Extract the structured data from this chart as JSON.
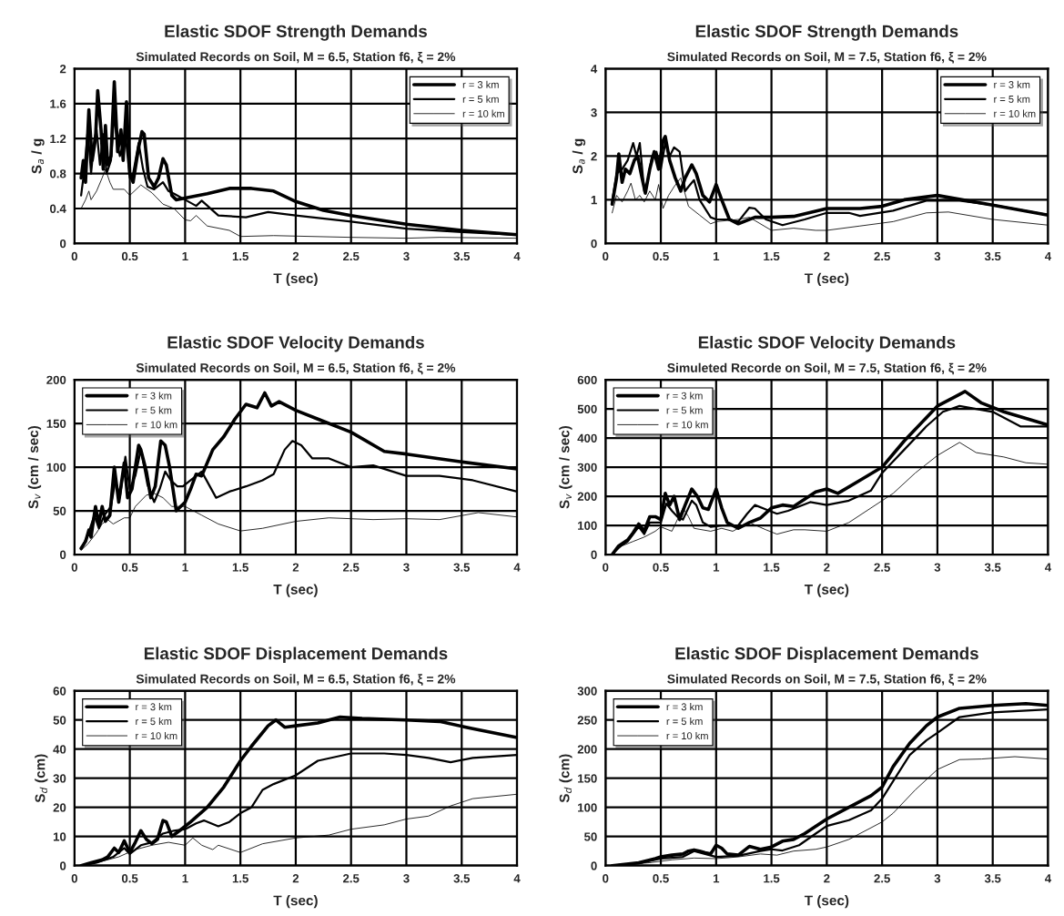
{
  "chart_data": [
    {
      "type": "line",
      "title": "Elastic SDOF Strength Demands",
      "subtitle": "Simulated Records on Soil, M = 6.5, Station f6, ξ = 2%",
      "xlabel": "T (sec)",
      "ylabel": "S$_{a}$ / g",
      "xlim": [
        0,
        4
      ],
      "xticks": [
        0,
        0.5,
        1,
        1.5,
        2,
        2.5,
        3,
        3.5,
        4
      ],
      "ylim": [
        0,
        2
      ],
      "yticks": [
        0,
        0.4,
        0.8,
        1.2,
        1.6,
        2
      ],
      "grid": true,
      "legend": "top right",
      "marker": "none",
      "line_style": "solid",
      "series": [
        {
          "name": "r = 3 km",
          "color": "#000000",
          "x": [
            0.06,
            0.08,
            0.1,
            0.13,
            0.16,
            0.19,
            0.21,
            0.24,
            0.26,
            0.28,
            0.3,
            0.33,
            0.36,
            0.39,
            0.42,
            0.44,
            0.47,
            0.5,
            0.53,
            0.58,
            0.61,
            0.63,
            0.67,
            0.72,
            0.76,
            0.8,
            0.83,
            0.88,
            0.92,
            1.0,
            1.2,
            1.4,
            1.6,
            1.8,
            2.0,
            2.25,
            2.5,
            3.0,
            3.5,
            4.0
          ],
          "values": [
            0.75,
            0.95,
            0.7,
            1.53,
            0.95,
            1.2,
            1.75,
            1.3,
            0.85,
            1.35,
            0.9,
            1.0,
            1.85,
            1.05,
            1.3,
            0.95,
            1.62,
            0.8,
            0.7,
            1.1,
            1.28,
            1.25,
            0.75,
            0.65,
            0.75,
            0.97,
            0.9,
            0.55,
            0.5,
            0.52,
            0.57,
            0.63,
            0.63,
            0.6,
            0.48,
            0.38,
            0.32,
            0.22,
            0.15,
            0.1
          ]
        },
        {
          "name": "r = 5 km",
          "color": "#000000",
          "x": [
            0.06,
            0.09,
            0.12,
            0.15,
            0.18,
            0.2,
            0.23,
            0.26,
            0.29,
            0.33,
            0.36,
            0.38,
            0.41,
            0.46,
            0.5,
            0.53,
            0.58,
            0.62,
            0.66,
            0.72,
            0.8,
            0.85,
            0.9,
            1.0,
            1.1,
            1.15,
            1.3,
            1.55,
            1.75,
            2.0,
            2.5,
            3.0,
            3.5,
            4.0
          ],
          "values": [
            0.55,
            0.85,
            1.3,
            0.8,
            1.2,
            1.3,
            0.9,
            1.25,
            0.8,
            0.95,
            1.5,
            1.2,
            1.0,
            1.25,
            0.75,
            0.8,
            1.15,
            0.85,
            0.65,
            0.62,
            0.7,
            0.6,
            0.57,
            0.5,
            0.43,
            0.49,
            0.32,
            0.3,
            0.36,
            0.32,
            0.25,
            0.17,
            0.13,
            0.1
          ]
        },
        {
          "name": "r = 10 km",
          "color": "#000000",
          "x": [
            0.06,
            0.1,
            0.13,
            0.15,
            0.2,
            0.25,
            0.28,
            0.32,
            0.35,
            0.45,
            0.5,
            0.6,
            0.7,
            0.8,
            0.9,
            1.0,
            1.05,
            1.1,
            1.2,
            1.4,
            1.5,
            1.8,
            2.5,
            3.0,
            3.3,
            4.0
          ],
          "values": [
            0.4,
            0.5,
            0.6,
            0.5,
            0.6,
            0.75,
            0.85,
            0.7,
            0.62,
            0.62,
            0.55,
            0.67,
            0.58,
            0.45,
            0.4,
            0.27,
            0.26,
            0.32,
            0.2,
            0.15,
            0.08,
            0.09,
            0.07,
            0.06,
            0.07,
            0.06
          ]
        }
      ]
    },
    {
      "type": "line",
      "title": "Elastic SDOF Strength Demands",
      "subtitle": "Simulated Records on Soil, M = 7.5, Station f6, ξ = 2%",
      "xlabel": "T (sec)",
      "ylabel": "S$_{a}$ / g",
      "xlim": [
        0,
        4
      ],
      "xticks": [
        0,
        0.5,
        1,
        1.5,
        2,
        2.5,
        3,
        3.5,
        4
      ],
      "ylim": [
        0,
        4
      ],
      "yticks": [
        0,
        1,
        2,
        3,
        4
      ],
      "grid": true,
      "legend": "top right",
      "marker": "none",
      "line_style": "solid",
      "series": [
        {
          "name": "r = 3 km",
          "color": "#000000",
          "x": [
            0.06,
            0.1,
            0.12,
            0.15,
            0.18,
            0.22,
            0.26,
            0.29,
            0.33,
            0.36,
            0.4,
            0.44,
            0.48,
            0.52,
            0.54,
            0.58,
            0.63,
            0.68,
            0.72,
            0.78,
            0.82,
            0.88,
            0.94,
            1.0,
            1.05,
            1.12,
            1.2,
            1.35,
            1.5,
            1.7,
            2.0,
            2.3,
            2.5,
            2.7,
            3.0,
            3.5,
            4.0
          ],
          "values": [
            0.9,
            1.5,
            2.05,
            1.4,
            1.7,
            1.6,
            1.9,
            2.0,
            1.5,
            1.15,
            1.7,
            2.1,
            1.7,
            2.35,
            2.45,
            1.9,
            1.5,
            1.2,
            1.5,
            1.8,
            1.6,
            1.1,
            0.95,
            1.35,
            1.0,
            0.55,
            0.45,
            0.6,
            0.6,
            0.62,
            0.8,
            0.8,
            0.85,
            1.0,
            1.1,
            0.88,
            0.65
          ]
        },
        {
          "name": "r = 5 km",
          "color": "#000000",
          "x": [
            0.06,
            0.1,
            0.15,
            0.2,
            0.25,
            0.28,
            0.31,
            0.35,
            0.38,
            0.42,
            0.46,
            0.5,
            0.54,
            0.58,
            0.62,
            0.67,
            0.72,
            0.75,
            0.8,
            0.85,
            0.95,
            1.0,
            1.1,
            1.2,
            1.3,
            1.35,
            1.45,
            1.6,
            1.8,
            2.0,
            2.2,
            2.3,
            2.6,
            2.9,
            3.2,
            3.5,
            4.0
          ],
          "values": [
            0.95,
            1.6,
            1.7,
            1.9,
            2.3,
            2.0,
            2.3,
            1.2,
            1.4,
            2.0,
            2.1,
            1.7,
            2.3,
            2.0,
            2.2,
            2.1,
            1.2,
            1.3,
            1.45,
            1.0,
            0.6,
            0.55,
            0.55,
            0.5,
            0.82,
            0.8,
            0.55,
            0.42,
            0.55,
            0.7,
            0.7,
            0.63,
            0.75,
            0.98,
            0.98,
            0.88,
            0.65
          ]
        },
        {
          "name": "r = 10 km",
          "color": "#000000",
          "x": [
            0.06,
            0.1,
            0.15,
            0.2,
            0.23,
            0.27,
            0.31,
            0.35,
            0.4,
            0.45,
            0.48,
            0.52,
            0.57,
            0.62,
            0.68,
            0.75,
            0.85,
            0.95,
            1.0,
            1.2,
            1.3,
            1.5,
            1.7,
            1.9,
            2.0,
            2.3,
            2.6,
            2.9,
            3.1,
            3.5,
            4.0
          ],
          "values": [
            0.7,
            1.1,
            0.95,
            1.2,
            1.38,
            1.0,
            1.1,
            0.95,
            1.2,
            1.0,
            1.35,
            0.8,
            1.1,
            1.3,
            1.5,
            0.85,
            0.65,
            0.45,
            0.5,
            0.55,
            0.6,
            0.3,
            0.35,
            0.3,
            0.3,
            0.4,
            0.5,
            0.7,
            0.72,
            0.55,
            0.42
          ]
        }
      ]
    },
    {
      "type": "line",
      "title": "Elastic SDOF Velocity Demands",
      "subtitle": "Simulated Records on Soil, M = 6.5, Station f6, ξ = 2%",
      "xlabel": "T (sec)",
      "ylabel": "S$_{v}$ (cm / sec)",
      "xlim": [
        0,
        4
      ],
      "xticks": [
        0,
        0.5,
        1,
        1.5,
        2,
        2.5,
        3,
        3.5,
        4
      ],
      "ylim": [
        0,
        200
      ],
      "yticks": [
        0,
        50,
        100,
        150,
        200
      ],
      "grid": true,
      "legend": "top left",
      "marker": "none",
      "line_style": "solid",
      "series": [
        {
          "name": "r = 3 km",
          "color": "#000000",
          "x": [
            0.06,
            0.1,
            0.13,
            0.15,
            0.19,
            0.22,
            0.25,
            0.28,
            0.32,
            0.36,
            0.4,
            0.45,
            0.48,
            0.52,
            0.58,
            0.6,
            0.65,
            0.69,
            0.73,
            0.78,
            0.82,
            0.86,
            0.92,
            1.0,
            1.05,
            1.1,
            1.15,
            1.25,
            1.35,
            1.45,
            1.55,
            1.65,
            1.72,
            1.78,
            1.85,
            2.0,
            2.2,
            2.5,
            2.8,
            3.0,
            3.5,
            4.0
          ],
          "values": [
            7,
            15,
            28,
            20,
            55,
            35,
            55,
            38,
            45,
            100,
            60,
            105,
            65,
            75,
            125,
            120,
            95,
            65,
            78,
            130,
            125,
            100,
            50,
            60,
            75,
            92,
            90,
            120,
            135,
            155,
            172,
            168,
            185,
            170,
            175,
            165,
            155,
            140,
            118,
            115,
            106,
            98
          ]
        },
        {
          "name": "r = 5 km",
          "color": "#000000",
          "x": [
            0.06,
            0.12,
            0.18,
            0.22,
            0.27,
            0.33,
            0.37,
            0.41,
            0.46,
            0.5,
            0.55,
            0.6,
            0.66,
            0.72,
            0.77,
            0.82,
            0.87,
            0.93,
            0.98,
            1.05,
            1.15,
            1.28,
            1.4,
            1.55,
            1.7,
            1.8,
            1.9,
            1.97,
            2.05,
            2.15,
            2.3,
            2.5,
            2.7,
            3.0,
            3.3,
            3.6,
            4.0
          ],
          "values": [
            6,
            22,
            45,
            30,
            45,
            55,
            85,
            65,
            112,
            75,
            90,
            120,
            80,
            60,
            75,
            95,
            85,
            78,
            78,
            85,
            95,
            65,
            72,
            78,
            85,
            92,
            120,
            130,
            125,
            110,
            110,
            100,
            102,
            90,
            90,
            85,
            72
          ]
        },
        {
          "name": "r = 10 km",
          "color": "#000000",
          "x": [
            0.06,
            0.12,
            0.2,
            0.25,
            0.3,
            0.35,
            0.45,
            0.5,
            0.55,
            0.65,
            0.72,
            0.8,
            0.88,
            1.0,
            1.15,
            1.3,
            1.5,
            1.7,
            2.0,
            2.3,
            2.7,
            3.0,
            3.3,
            3.65,
            4.0
          ],
          "values": [
            5,
            12,
            25,
            35,
            40,
            35,
            42,
            42,
            55,
            68,
            70,
            65,
            55,
            55,
            45,
            35,
            27,
            30,
            38,
            42,
            40,
            41,
            40,
            48,
            43
          ]
        }
      ]
    },
    {
      "type": "line",
      "title": "Elastic SDOF Velocity Demands",
      "subtitle": "Simuleted Recorde on Soil, M = 7.5, Station f6, ξ = 2%",
      "xlabel": "T (sec)",
      "ylabel": "S$_{v}$ (cm / sec)",
      "xlim": [
        0,
        4
      ],
      "xticks": [
        0,
        0.5,
        1,
        1.5,
        2,
        2.5,
        3,
        3.5,
        4
      ],
      "ylim": [
        0,
        600
      ],
      "yticks": [
        0,
        100,
        200,
        300,
        400,
        500,
        600
      ],
      "grid": true,
      "legend": "top left",
      "marker": "none",
      "line_style": "solid",
      "series": [
        {
          "name": "r = 3 km",
          "color": "#000000",
          "x": [
            0.06,
            0.12,
            0.2,
            0.25,
            0.3,
            0.35,
            0.4,
            0.45,
            0.5,
            0.54,
            0.58,
            0.62,
            0.67,
            0.72,
            0.78,
            0.83,
            0.88,
            0.93,
            1.0,
            1.05,
            1.1,
            1.2,
            1.3,
            1.4,
            1.5,
            1.6,
            1.7,
            1.8,
            1.9,
            2.0,
            2.1,
            2.3,
            2.5,
            2.7,
            2.9,
            3.0,
            3.15,
            3.25,
            3.4,
            3.6,
            4.0
          ],
          "values": [
            0,
            30,
            50,
            75,
            105,
            80,
            130,
            130,
            120,
            210,
            170,
            200,
            120,
            170,
            225,
            200,
            160,
            155,
            225,
            160,
            110,
            90,
            110,
            125,
            160,
            170,
            165,
            190,
            215,
            225,
            210,
            255,
            300,
            390,
            470,
            510,
            540,
            560,
            520,
            490,
            445
          ]
        },
        {
          "name": "r = 5 km",
          "color": "#000000",
          "x": [
            0.06,
            0.12,
            0.2,
            0.3,
            0.35,
            0.4,
            0.5,
            0.55,
            0.6,
            0.65,
            0.7,
            0.78,
            0.82,
            0.88,
            0.95,
            1.05,
            1.2,
            1.28,
            1.35,
            1.45,
            1.55,
            1.65,
            1.75,
            1.85,
            2.0,
            2.2,
            2.4,
            2.5,
            2.7,
            2.9,
            3.05,
            3.2,
            3.5,
            3.75,
            4.0
          ],
          "values": [
            0,
            25,
            45,
            95,
            70,
            110,
            110,
            175,
            150,
            130,
            120,
            185,
            170,
            110,
            95,
            100,
            100,
            140,
            170,
            155,
            140,
            150,
            165,
            180,
            170,
            185,
            220,
            280,
            360,
            440,
            490,
            510,
            490,
            440,
            440
          ]
        },
        {
          "name": "r = 10 km",
          "color": "#000000",
          "x": [
            0.06,
            0.15,
            0.25,
            0.35,
            0.45,
            0.5,
            0.6,
            0.7,
            0.75,
            0.8,
            0.95,
            1.05,
            1.15,
            1.3,
            1.45,
            1.55,
            1.7,
            1.8,
            2.0,
            2.2,
            2.4,
            2.6,
            2.8,
            3.0,
            3.2,
            3.35,
            3.6,
            3.8,
            4.0
          ],
          "values": [
            0,
            30,
            45,
            60,
            80,
            95,
            80,
            160,
            130,
            90,
            80,
            90,
            80,
            110,
            85,
            70,
            85,
            85,
            80,
            110,
            160,
            210,
            280,
            340,
            385,
            350,
            335,
            315,
            310
          ]
        }
      ]
    },
    {
      "type": "line",
      "title": "Elastic SDOF Displacement Demands",
      "subtitle": "Simulated Records on Soil, M = 6.5, Station f6, ξ = 2%",
      "xlabel": "T (sec)",
      "ylabel": "S$_{d}$ (cm)",
      "xlim": [
        0,
        4
      ],
      "xticks": [
        0,
        0.5,
        1,
        1.5,
        2,
        2.5,
        3,
        3.5,
        4
      ],
      "ylim": [
        0,
        60
      ],
      "yticks": [
        0,
        10,
        20,
        30,
        40,
        50,
        60
      ],
      "grid": true,
      "legend": "top left",
      "marker": "none",
      "line_style": "solid",
      "series": [
        {
          "name": "r = 3 km",
          "color": "#000000",
          "x": [
            0.06,
            0.15,
            0.25,
            0.3,
            0.36,
            0.4,
            0.45,
            0.5,
            0.55,
            0.6,
            0.65,
            0.7,
            0.75,
            0.8,
            0.83,
            0.88,
            0.95,
            1.05,
            1.2,
            1.35,
            1.5,
            1.6,
            1.75,
            1.82,
            1.9,
            2.0,
            2.2,
            2.4,
            2.6,
            3.0,
            3.3,
            3.6,
            4.0
          ],
          "values": [
            0,
            1,
            2,
            3,
            6,
            4.5,
            8.5,
            4.5,
            8,
            12,
            9,
            7.5,
            9,
            15.5,
            15,
            10,
            12,
            15,
            20,
            27,
            36,
            41,
            48,
            50,
            47.5,
            48,
            49,
            51,
            50.5,
            50,
            49.5,
            47,
            44
          ]
        },
        {
          "name": "r = 5 km",
          "color": "#000000",
          "x": [
            0.06,
            0.2,
            0.35,
            0.45,
            0.5,
            0.6,
            0.7,
            0.8,
            0.9,
            1.0,
            1.1,
            1.17,
            1.3,
            1.4,
            1.5,
            1.6,
            1.7,
            1.8,
            2.0,
            2.2,
            2.5,
            2.8,
            3.0,
            3.2,
            3.4,
            3.6,
            4.0
          ],
          "values": [
            0,
            1,
            3,
            6,
            4,
            7,
            8,
            11,
            12,
            12.5,
            14.5,
            15.5,
            13.5,
            15,
            18,
            20,
            26,
            28,
            31,
            36,
            38.5,
            38.5,
            38,
            37,
            35.5,
            37,
            38
          ]
        },
        {
          "name": "r = 10 km",
          "color": "#000000",
          "x": [
            0.06,
            0.2,
            0.4,
            0.55,
            0.7,
            0.85,
            1.0,
            1.07,
            1.15,
            1.25,
            1.3,
            1.5,
            1.7,
            2.0,
            2.3,
            2.5,
            2.8,
            3.0,
            3.2,
            3.4,
            3.6,
            4.0
          ],
          "values": [
            0,
            1,
            3,
            5.5,
            7,
            8,
            7,
            9.5,
            7,
            5.5,
            7,
            4.5,
            7.5,
            9.5,
            10.5,
            12.5,
            14,
            16,
            17,
            20.5,
            23,
            24.5
          ]
        }
      ]
    },
    {
      "type": "line",
      "title": "Elastic SDOF Displacement Demands",
      "subtitle": "Simulated Records on Soil, M = 7.5, Station f6, ξ = 2%",
      "xlabel": "T (sec)",
      "ylabel": "S$_{d}$ (cm)",
      "xlim": [
        0,
        4
      ],
      "xticks": [
        0,
        0.5,
        1,
        1.5,
        2,
        2.5,
        3,
        3.5,
        4
      ],
      "ylim": [
        0,
        300
      ],
      "yticks": [
        0,
        50,
        100,
        150,
        200,
        250,
        300
      ],
      "grid": true,
      "legend": "top left",
      "marker": "none",
      "line_style": "solid",
      "series": [
        {
          "name": "r = 3 km",
          "color": "#000000",
          "x": [
            0.06,
            0.3,
            0.45,
            0.5,
            0.6,
            0.7,
            0.75,
            0.8,
            0.85,
            0.9,
            0.95,
            1.0,
            1.05,
            1.1,
            1.2,
            1.3,
            1.4,
            1.5,
            1.6,
            1.7,
            1.8,
            2.0,
            2.2,
            2.4,
            2.5,
            2.6,
            2.75,
            2.9,
            3.0,
            3.2,
            3.5,
            3.8,
            4.0
          ],
          "values": [
            0,
            5,
            12,
            15,
            18,
            20,
            25,
            27,
            25,
            22,
            20,
            35,
            30,
            20,
            18,
            33,
            28,
            32,
            42,
            45,
            55,
            80,
            100,
            120,
            135,
            170,
            210,
            240,
            255,
            270,
            275,
            278,
            275
          ]
        },
        {
          "name": "r = 5 km",
          "color": "#000000",
          "x": [
            0.06,
            0.3,
            0.5,
            0.7,
            0.8,
            0.9,
            1.0,
            1.2,
            1.4,
            1.5,
            1.6,
            1.75,
            1.9,
            2.0,
            2.2,
            2.4,
            2.5,
            2.6,
            2.75,
            2.9,
            3.0,
            3.2,
            3.5,
            4.0
          ],
          "values": [
            0,
            4,
            12,
            15,
            25,
            20,
            15,
            17,
            25,
            28,
            26,
            35,
            55,
            68,
            78,
            95,
            115,
            145,
            190,
            215,
            228,
            255,
            263,
            268
          ]
        },
        {
          "name": "r = 10 km",
          "color": "#000000",
          "x": [
            0.06,
            0.4,
            0.6,
            0.8,
            1.0,
            1.2,
            1.4,
            1.55,
            1.7,
            1.9,
            2.0,
            2.2,
            2.5,
            2.6,
            2.8,
            3.0,
            3.2,
            3.4,
            3.7,
            4.0
          ],
          "values": [
            0,
            5,
            10,
            13,
            12,
            15,
            20,
            18,
            25,
            28,
            32,
            45,
            75,
            90,
            130,
            165,
            182,
            183,
            187,
            183
          ]
        }
      ]
    }
  ]
}
